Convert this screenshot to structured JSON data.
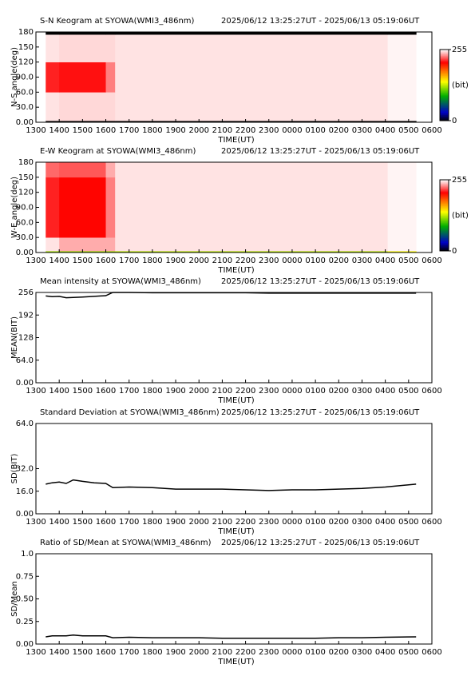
{
  "chart_data": [
    {
      "type": "heatmap",
      "title": "S-N Keogram at SYOWA(WMI3_486nm)",
      "subtitle": "2025/06/12 13:25:27UT - 2025/06/13 05:19:06UT",
      "y_label": "N-S angle(deg)",
      "x_label": "TIME(UT)",
      "xlim": [
        13,
        30
      ],
      "xticks": [
        {
          "value": 13,
          "label": "1300"
        },
        {
          "value": 14,
          "label": "1400"
        },
        {
          "value": 15,
          "label": "1500"
        },
        {
          "value": 16,
          "label": "1600"
        },
        {
          "value": 17,
          "label": "1700"
        },
        {
          "value": 18,
          "label": "1800"
        },
        {
          "value": 19,
          "label": "1900"
        },
        {
          "value": 20,
          "label": "2000"
        },
        {
          "value": 21,
          "label": "2100"
        },
        {
          "value": 22,
          "label": "2200"
        },
        {
          "value": 23,
          "label": "2300"
        },
        {
          "value": 24,
          "label": "0000"
        },
        {
          "value": 25,
          "label": "0100"
        },
        {
          "value": 26,
          "label": "0200"
        },
        {
          "value": 27,
          "label": "0300"
        },
        {
          "value": 28,
          "label": "0400"
        },
        {
          "value": 29,
          "label": "0500"
        },
        {
          "value": 30,
          "label": "0600"
        }
      ],
      "ylim": [
        0,
        180
      ],
      "yticks": [
        {
          "value": 0,
          "label": "0.00"
        },
        {
          "value": 30,
          "label": "30.0"
        },
        {
          "value": 60,
          "label": "60.0"
        },
        {
          "value": 90,
          "label": "90.0"
        },
        120,
        150,
        180
      ],
      "xbins": [
        13.42,
        14.0,
        16.0,
        16.4,
        28.1,
        29.32
      ],
      "ybins": [
        0,
        3,
        60,
        120,
        175,
        180
      ],
      "values": [
        [
          0,
          0,
          0,
          0,
          0
        ],
        [
          250,
          248,
          248,
          250,
          253
        ],
        [
          215,
          212,
          232,
          250,
          253
        ],
        [
          250,
          248,
          248,
          250,
          253
        ],
        [
          0,
          0,
          0,
          0,
          0
        ]
      ],
      "zlim": [
        0,
        255
      ],
      "zticks": [
        0,
        255
      ],
      "z_label": "(bit)"
    },
    {
      "type": "heatmap",
      "title": "E-W Keogram at SYOWA(WMI3_486nm)",
      "subtitle": "2025/06/12 13:25:27UT - 2025/06/13 05:19:06UT",
      "y_label": "W-E angle(deg)",
      "x_label": "TIME(UT)",
      "xlim": [
        13,
        30
      ],
      "xticks": [
        {
          "value": 13,
          "label": "1300"
        },
        {
          "value": 14,
          "label": "1400"
        },
        {
          "value": 15,
          "label": "1500"
        },
        {
          "value": 16,
          "label": "1600"
        },
        {
          "value": 17,
          "label": "1700"
        },
        {
          "value": 18,
          "label": "1800"
        },
        {
          "value": 19,
          "label": "1900"
        },
        {
          "value": 20,
          "label": "2000"
        },
        {
          "value": 21,
          "label": "2100"
        },
        {
          "value": 22,
          "label": "2200"
        },
        {
          "value": 23,
          "label": "2300"
        },
        {
          "value": 24,
          "label": "0000"
        },
        {
          "value": 25,
          "label": "0100"
        },
        {
          "value": 26,
          "label": "0200"
        },
        {
          "value": 27,
          "label": "0300"
        },
        {
          "value": 28,
          "label": "0400"
        },
        {
          "value": 29,
          "label": "0500"
        },
        {
          "value": 30,
          "label": "0600"
        }
      ],
      "ylim": [
        0,
        180
      ],
      "yticks": [
        {
          "value": 0,
          "label": "0.00"
        },
        {
          "value": 30,
          "label": "30.0"
        },
        {
          "value": 60,
          "label": "60.0"
        },
        {
          "value": 90,
          "label": "90.0"
        },
        120,
        150,
        180
      ],
      "xbins": [
        13.42,
        14.0,
        16.0,
        16.4,
        28.1,
        29.32
      ],
      "ybins": [
        0,
        3,
        30,
        150,
        180
      ],
      "values": [
        [
          120,
          120,
          120,
          125,
          140
        ],
        [
          250,
          240,
          240,
          250,
          253
        ],
        [
          215,
          208,
          232,
          250,
          253
        ],
        [
          228,
          225,
          240,
          250,
          253
        ]
      ],
      "zlim": [
        0,
        255
      ],
      "zticks": [
        0,
        255
      ],
      "z_label": "(bit)"
    },
    {
      "type": "line",
      "title": "Mean intensity at SYOWA(WMI3_486nm)",
      "subtitle": "2025/06/12 13:25:27UT - 2025/06/13 05:19:06UT",
      "y_label": "MEAN(BIT)",
      "x_label": "TIME(UT)",
      "xlim": [
        13,
        30
      ],
      "xticks": [
        {
          "value": 13,
          "label": "1300"
        },
        {
          "value": 14,
          "label": "1400"
        },
        {
          "value": 15,
          "label": "1500"
        },
        {
          "value": 16,
          "label": "1600"
        },
        {
          "value": 17,
          "label": "1700"
        },
        {
          "value": 18,
          "label": "1800"
        },
        {
          "value": 19,
          "label": "1900"
        },
        {
          "value": 20,
          "label": "2000"
        },
        {
          "value": 21,
          "label": "2100"
        },
        {
          "value": 22,
          "label": "2200"
        },
        {
          "value": 23,
          "label": "2300"
        },
        {
          "value": 24,
          "label": "0000"
        },
        {
          "value": 25,
          "label": "0100"
        },
        {
          "value": 26,
          "label": "0200"
        },
        {
          "value": 27,
          "label": "0300"
        },
        {
          "value": 28,
          "label": "0400"
        },
        {
          "value": 29,
          "label": "0500"
        },
        {
          "value": 30,
          "label": "0600"
        }
      ],
      "ylim": [
        0,
        256
      ],
      "yticks": [
        {
          "value": 0,
          "label": "0.00"
        },
        {
          "value": 64,
          "label": "64.0"
        },
        128,
        192,
        256
      ],
      "x": [
        13.42,
        13.7,
        14.0,
        14.3,
        14.6,
        15.0,
        15.5,
        16.0,
        16.3,
        17,
        18,
        19,
        20,
        21,
        22,
        23,
        24,
        25,
        26,
        27,
        28,
        29.32
      ],
      "values": [
        246,
        244,
        245,
        241,
        242,
        243,
        245,
        247,
        256,
        256,
        255,
        255,
        255,
        255,
        255,
        254,
        254,
        254,
        254,
        254,
        254,
        254
      ],
      "color": "#000000"
    },
    {
      "type": "line",
      "title": "Standard Deviation at SYOWA(WMI3_486nm)",
      "subtitle": "2025/06/12 13:25:27UT - 2025/06/13 05:19:06UT",
      "y_label": "SD(BIT)",
      "x_label": "TIME(UT)",
      "xlim": [
        13,
        30
      ],
      "xticks": [
        {
          "value": 13,
          "label": "1300"
        },
        {
          "value": 14,
          "label": "1400"
        },
        {
          "value": 15,
          "label": "1500"
        },
        {
          "value": 16,
          "label": "1600"
        },
        {
          "value": 17,
          "label": "1700"
        },
        {
          "value": 18,
          "label": "1800"
        },
        {
          "value": 19,
          "label": "1900"
        },
        {
          "value": 20,
          "label": "2000"
        },
        {
          "value": 21,
          "label": "2100"
        },
        {
          "value": 22,
          "label": "2200"
        },
        {
          "value": 23,
          "label": "2300"
        },
        {
          "value": 24,
          "label": "0000"
        },
        {
          "value": 25,
          "label": "0100"
        },
        {
          "value": 26,
          "label": "0200"
        },
        {
          "value": 27,
          "label": "0300"
        },
        {
          "value": 28,
          "label": "0400"
        },
        {
          "value": 29,
          "label": "0500"
        },
        {
          "value": 30,
          "label": "0600"
        }
      ],
      "ylim": [
        0,
        64
      ],
      "yticks": [
        {
          "value": 0,
          "label": "0.00"
        },
        {
          "value": 16,
          "label": "16.0"
        },
        {
          "value": 32,
          "label": "32.0"
        },
        {
          "value": 64,
          "label": "64.0"
        }
      ],
      "x": [
        13.42,
        13.7,
        14.0,
        14.3,
        14.6,
        15.0,
        15.5,
        16.0,
        16.3,
        17,
        18,
        19,
        20,
        21,
        22,
        23,
        24,
        25,
        26,
        27,
        28,
        29.32
      ],
      "values": [
        21,
        22,
        22.5,
        21.5,
        24,
        23,
        22,
        21.5,
        18.5,
        19,
        18.5,
        17.5,
        17.5,
        17.5,
        17,
        16.5,
        17,
        17,
        17.5,
        18,
        19,
        21
      ],
      "color": "#000000"
    },
    {
      "type": "line",
      "title": "Ratio of SD/Mean at SYOWA(WMI3_486nm)",
      "subtitle": "2025/06/12 13:25:27UT - 2025/06/13 05:19:06UT",
      "y_label": "SD/Mean",
      "x_label": "TIME(UT)",
      "xlim": [
        13,
        30
      ],
      "xticks": [
        {
          "value": 13,
          "label": "1300"
        },
        {
          "value": 14,
          "label": "1400"
        },
        {
          "value": 15,
          "label": "1500"
        },
        {
          "value": 16,
          "label": "1600"
        },
        {
          "value": 17,
          "label": "1700"
        },
        {
          "value": 18,
          "label": "1800"
        },
        {
          "value": 19,
          "label": "1900"
        },
        {
          "value": 20,
          "label": "2000"
        },
        {
          "value": 21,
          "label": "2100"
        },
        {
          "value": 22,
          "label": "2200"
        },
        {
          "value": 23,
          "label": "2300"
        },
        {
          "value": 24,
          "label": "0000"
        },
        {
          "value": 25,
          "label": "0100"
        },
        {
          "value": 26,
          "label": "0200"
        },
        {
          "value": 27,
          "label": "0300"
        },
        {
          "value": 28,
          "label": "0400"
        },
        {
          "value": 29,
          "label": "0500"
        },
        {
          "value": 30,
          "label": "0600"
        }
      ],
      "ylim": [
        0,
        1
      ],
      "yticks": [
        {
          "value": 0,
          "label": "0.00"
        },
        0.25,
        {
          "value": 0.5,
          "label": "0.50"
        },
        0.75,
        {
          "value": 1,
          "label": "1.0"
        }
      ],
      "x": [
        13.42,
        13.7,
        14.0,
        14.3,
        14.6,
        15.0,
        15.5,
        16.0,
        16.3,
        17,
        18,
        19,
        20,
        21,
        22,
        23,
        24,
        25,
        26,
        27,
        28,
        29.32
      ],
      "values": [
        0.08,
        0.09,
        0.09,
        0.09,
        0.1,
        0.09,
        0.09,
        0.09,
        0.07,
        0.075,
        0.07,
        0.07,
        0.07,
        0.065,
        0.065,
        0.065,
        0.065,
        0.065,
        0.07,
        0.07,
        0.075,
        0.08
      ],
      "color": "#000000"
    }
  ]
}
